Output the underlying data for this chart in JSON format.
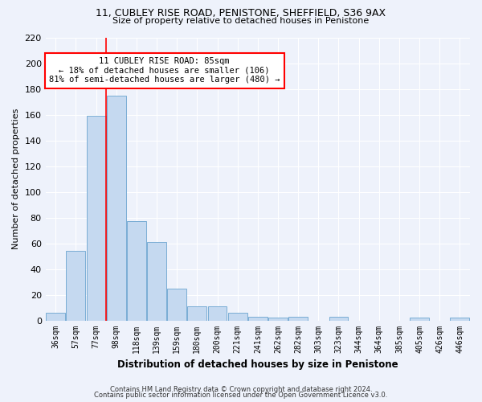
{
  "title1": "11, CUBLEY RISE ROAD, PENISTONE, SHEFFIELD, S36 9AX",
  "title2": "Size of property relative to detached houses in Penistone",
  "xlabel": "Distribution of detached houses by size in Penistone",
  "ylabel": "Number of detached properties",
  "bar_color": "#c5d9f0",
  "bar_edge_color": "#7aadd4",
  "bar_categories": [
    "36sqm",
    "57sqm",
    "77sqm",
    "98sqm",
    "118sqm",
    "139sqm",
    "159sqm",
    "180sqm",
    "200sqm",
    "221sqm",
    "241sqm",
    "262sqm",
    "282sqm",
    "303sqm",
    "323sqm",
    "344sqm",
    "364sqm",
    "385sqm",
    "405sqm",
    "426sqm",
    "446sqm"
  ],
  "bar_values": [
    6,
    54,
    159,
    175,
    77,
    61,
    25,
    11,
    11,
    6,
    3,
    2,
    3,
    0,
    3,
    0,
    0,
    0,
    2,
    0,
    2
  ],
  "ylim": [
    0,
    220
  ],
  "yticks": [
    0,
    20,
    40,
    60,
    80,
    100,
    120,
    140,
    160,
    180,
    200,
    220
  ],
  "redline_x": 2.5,
  "annotation_line1": "11 CUBLEY RISE ROAD: 85sqm",
  "annotation_line2": "← 18% of detached houses are smaller (106)",
  "annotation_line3": "81% of semi-detached houses are larger (480) →",
  "annotation_box_color": "white",
  "annotation_box_edge_color": "red",
  "footer1": "Contains HM Land Registry data © Crown copyright and database right 2024.",
  "footer2": "Contains public sector information licensed under the Open Government Licence v3.0.",
  "background_color": "#eef2fb",
  "grid_color": "#ffffff",
  "spine_color": "#cccccc"
}
